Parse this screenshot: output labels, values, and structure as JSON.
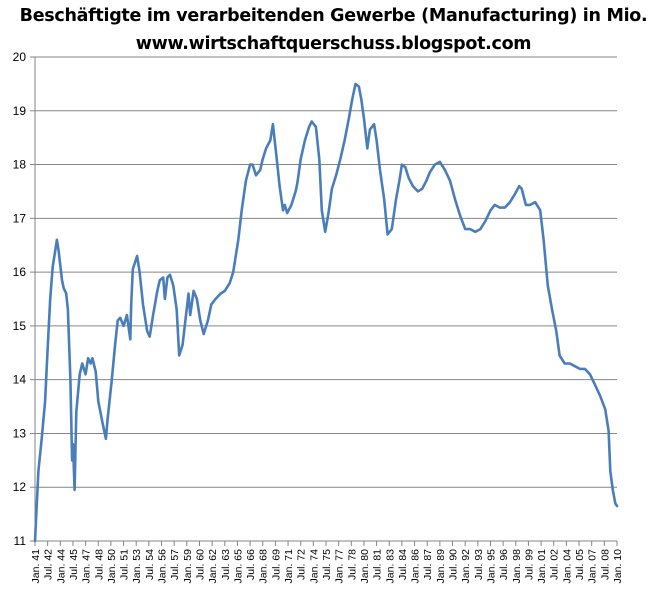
{
  "chart_data": {
    "type": "line",
    "title": "Beschäftigte im verarbeitenden Gewerbe (Manufacturing) in Mio.",
    "subtitle": "www.wirtschaftquerschuss.blogspot.com",
    "xlabel": "",
    "ylabel": "",
    "ylim": [
      11,
      20
    ],
    "yticks": [
      11,
      12,
      13,
      14,
      15,
      16,
      17,
      18,
      19,
      20
    ],
    "xlim": [
      "1941-01",
      "2010-01"
    ],
    "grid": "horizontal",
    "legend": "none",
    "line_color": "#4a7ebb",
    "xtick_labels": [
      "Jan. 41",
      "Jul. 42",
      "Jan. 44",
      "Jul. 45",
      "Jan. 47",
      "Jul. 48",
      "Jan. 50",
      "Jul. 51",
      "Jan. 53",
      "Jul. 54",
      "Jan. 56",
      "Jul. 57",
      "Jan. 59",
      "Jul. 60",
      "Jan. 62",
      "Jul. 63",
      "Jan. 65",
      "Jul. 66",
      "Jan. 68",
      "Jul. 69",
      "Jan. 71",
      "Jul. 72",
      "Jan. 74",
      "Jul. 75",
      "Jan. 77",
      "Jul. 78",
      "Jan. 80",
      "Jul. 81",
      "Jan. 83",
      "Jul. 84",
      "Jan. 86",
      "Jul. 87",
      "Jan. 89",
      "Jul. 90",
      "Jan. 92",
      "Jul. 93",
      "Jan. 95",
      "Jul. 96",
      "Jan. 98",
      "Jul. 99",
      "Jan. 01",
      "Jul. 02",
      "Jan. 04",
      "Jul. 05",
      "Jan. 07",
      "Jul. 08",
      "Jan. 10"
    ],
    "series": [
      {
        "points": [
          [
            1941.0,
            11.0
          ],
          [
            1941.4,
            12.3
          ],
          [
            1941.8,
            12.9
          ],
          [
            1942.2,
            13.6
          ],
          [
            1942.5,
            14.6
          ],
          [
            1942.8,
            15.5
          ],
          [
            1943.1,
            16.1
          ],
          [
            1943.5,
            16.5
          ],
          [
            1943.6,
            16.6
          ],
          [
            1943.8,
            16.4
          ],
          [
            1944.2,
            15.85
          ],
          [
            1944.4,
            15.7
          ],
          [
            1944.7,
            15.6
          ],
          [
            1944.9,
            15.3
          ],
          [
            1945.2,
            14.0
          ],
          [
            1945.4,
            12.5
          ],
          [
            1945.5,
            12.8
          ],
          [
            1945.7,
            11.95
          ],
          [
            1945.9,
            13.4
          ],
          [
            1946.3,
            14.1
          ],
          [
            1946.6,
            14.3
          ],
          [
            1947.0,
            14.1
          ],
          [
            1947.3,
            14.4
          ],
          [
            1947.6,
            14.3
          ],
          [
            1947.8,
            14.4
          ],
          [
            1948.2,
            14.15
          ],
          [
            1948.5,
            13.6
          ],
          [
            1949.0,
            13.2
          ],
          [
            1949.4,
            12.9
          ],
          [
            1949.6,
            13.25
          ],
          [
            1950.1,
            14.0
          ],
          [
            1950.5,
            14.65
          ],
          [
            1950.8,
            15.1
          ],
          [
            1951.1,
            15.15
          ],
          [
            1951.5,
            15.0
          ],
          [
            1951.9,
            15.2
          ],
          [
            1952.3,
            14.75
          ],
          [
            1952.4,
            15.4
          ],
          [
            1952.6,
            16.05
          ],
          [
            1953.1,
            16.3
          ],
          [
            1953.4,
            16.0
          ],
          [
            1953.8,
            15.4
          ],
          [
            1954.3,
            14.9
          ],
          [
            1954.6,
            14.8
          ],
          [
            1955.0,
            15.2
          ],
          [
            1955.5,
            15.65
          ],
          [
            1955.8,
            15.85
          ],
          [
            1956.2,
            15.9
          ],
          [
            1956.4,
            15.5
          ],
          [
            1956.7,
            15.9
          ],
          [
            1957.0,
            15.95
          ],
          [
            1957.4,
            15.75
          ],
          [
            1957.8,
            15.3
          ],
          [
            1958.1,
            14.45
          ],
          [
            1958.5,
            14.65
          ],
          [
            1958.9,
            15.2
          ],
          [
            1959.2,
            15.6
          ],
          [
            1959.4,
            15.2
          ],
          [
            1959.8,
            15.65
          ],
          [
            1960.2,
            15.5
          ],
          [
            1960.6,
            15.1
          ],
          [
            1961.0,
            14.85
          ],
          [
            1961.5,
            15.1
          ],
          [
            1961.9,
            15.4
          ],
          [
            1962.4,
            15.5
          ],
          [
            1963.0,
            15.6
          ],
          [
            1963.5,
            15.65
          ],
          [
            1964.1,
            15.8
          ],
          [
            1964.5,
            16.0
          ],
          [
            1964.7,
            16.2
          ],
          [
            1965.1,
            16.6
          ],
          [
            1965.5,
            17.15
          ],
          [
            1966.0,
            17.7
          ],
          [
            1966.5,
            18.0
          ],
          [
            1966.8,
            18.0
          ],
          [
            1967.2,
            17.8
          ],
          [
            1967.7,
            17.9
          ],
          [
            1968.0,
            18.1
          ],
          [
            1968.4,
            18.3
          ],
          [
            1968.9,
            18.45
          ],
          [
            1969.2,
            18.75
          ],
          [
            1969.6,
            18.2
          ],
          [
            1970.0,
            17.6
          ],
          [
            1970.4,
            17.15
          ],
          [
            1970.6,
            17.25
          ],
          [
            1970.9,
            17.1
          ],
          [
            1971.4,
            17.25
          ],
          [
            1971.9,
            17.5
          ],
          [
            1972.1,
            17.65
          ],
          [
            1972.5,
            18.1
          ],
          [
            1973.0,
            18.45
          ],
          [
            1973.5,
            18.7
          ],
          [
            1973.8,
            18.8
          ],
          [
            1974.3,
            18.7
          ],
          [
            1974.7,
            18.1
          ],
          [
            1975.0,
            17.15
          ],
          [
            1975.4,
            16.75
          ],
          [
            1975.8,
            17.1
          ],
          [
            1976.2,
            17.55
          ],
          [
            1976.7,
            17.8
          ],
          [
            1977.2,
            18.1
          ],
          [
            1977.7,
            18.45
          ],
          [
            1978.2,
            18.85
          ],
          [
            1978.6,
            19.2
          ],
          [
            1979.0,
            19.5
          ],
          [
            1979.4,
            19.45
          ],
          [
            1979.7,
            19.2
          ],
          [
            1980.0,
            18.85
          ],
          [
            1980.4,
            18.3
          ],
          [
            1980.7,
            18.65
          ],
          [
            1981.2,
            18.75
          ],
          [
            1981.5,
            18.45
          ],
          [
            1981.9,
            17.9
          ],
          [
            1982.4,
            17.35
          ],
          [
            1982.8,
            16.7
          ],
          [
            1983.3,
            16.8
          ],
          [
            1983.8,
            17.35
          ],
          [
            1984.2,
            17.7
          ],
          [
            1984.5,
            18.0
          ],
          [
            1984.9,
            17.95
          ],
          [
            1985.3,
            17.75
          ],
          [
            1985.8,
            17.6
          ],
          [
            1986.4,
            17.5
          ],
          [
            1986.9,
            17.55
          ],
          [
            1987.4,
            17.7
          ],
          [
            1987.8,
            17.85
          ],
          [
            1988.4,
            18.0
          ],
          [
            1989.0,
            18.05
          ],
          [
            1989.6,
            17.9
          ],
          [
            1990.2,
            17.7
          ],
          [
            1990.8,
            17.35
          ],
          [
            1991.4,
            17.05
          ],
          [
            1992.0,
            16.8
          ],
          [
            1992.6,
            16.8
          ],
          [
            1993.2,
            16.75
          ],
          [
            1993.8,
            16.8
          ],
          [
            1994.4,
            16.95
          ],
          [
            1995.0,
            17.15
          ],
          [
            1995.5,
            17.25
          ],
          [
            1996.1,
            17.2
          ],
          [
            1996.7,
            17.2
          ],
          [
            1997.3,
            17.3
          ],
          [
            1997.9,
            17.45
          ],
          [
            1998.4,
            17.6
          ],
          [
            1998.7,
            17.55
          ],
          [
            1999.2,
            17.25
          ],
          [
            1999.7,
            17.25
          ],
          [
            2000.3,
            17.3
          ],
          [
            2000.9,
            17.15
          ],
          [
            2001.3,
            16.6
          ],
          [
            2001.8,
            15.75
          ],
          [
            2002.3,
            15.3
          ],
          [
            2002.8,
            14.9
          ],
          [
            2003.2,
            14.45
          ],
          [
            2003.8,
            14.3
          ],
          [
            2004.4,
            14.3
          ],
          [
            2005.0,
            14.25
          ],
          [
            2005.6,
            14.2
          ],
          [
            2006.2,
            14.2
          ],
          [
            2006.8,
            14.1
          ],
          [
            2007.4,
            13.9
          ],
          [
            2008.0,
            13.7
          ],
          [
            2008.6,
            13.45
          ],
          [
            2009.0,
            13.05
          ],
          [
            2009.2,
            12.3
          ],
          [
            2009.5,
            11.95
          ],
          [
            2009.8,
            11.7
          ],
          [
            2010.0,
            11.65
          ]
        ]
      }
    ]
  }
}
